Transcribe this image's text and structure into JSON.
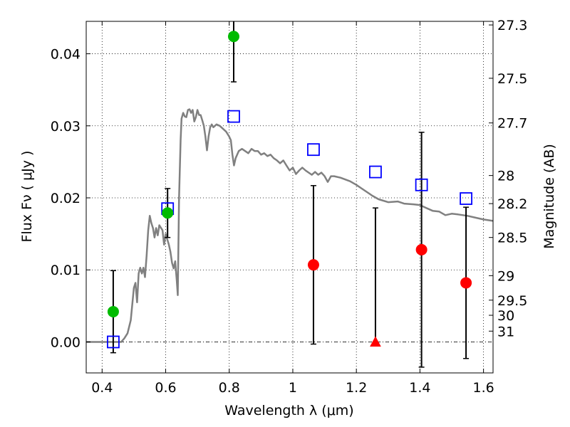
{
  "chart_data": {
    "type": "scatter",
    "xlabel": "Wavelength  λ (μm)",
    "ylabel": "Flux  Fν  ( μJy )",
    "ylabel_right": "Magnitude (AB)",
    "xlim": [
      0.35,
      1.63
    ],
    "ylim": [
      -0.0043,
      0.0445
    ],
    "grid": true,
    "x_ticks": [
      {
        "value": 0.4,
        "label": "0.4"
      },
      {
        "value": 0.6,
        "label": "0.6"
      },
      {
        "value": 0.8,
        "label": "0.8"
      },
      {
        "value": 1.0,
        "label": "1"
      },
      {
        "value": 1.2,
        "label": "1.2"
      },
      {
        "value": 1.4,
        "label": "1.4"
      },
      {
        "value": 1.6,
        "label": "1.6"
      }
    ],
    "y_ticks": [
      {
        "value": 0.0,
        "label": "0.00"
      },
      {
        "value": 0.01,
        "label": "0.01"
      },
      {
        "value": 0.02,
        "label": "0.02"
      },
      {
        "value": 0.03,
        "label": "0.03"
      },
      {
        "value": 0.04,
        "label": "0.04"
      }
    ],
    "right_ticks": [
      {
        "label": "27.3",
        "flux": 0.044
      },
      {
        "label": "27.5",
        "flux": 0.0366
      },
      {
        "label": "27.7",
        "flux": 0.0304
      },
      {
        "label": "28",
        "flux": 0.0231
      },
      {
        "label": "28.2",
        "flux": 0.0192
      },
      {
        "label": "28.5",
        "flux": 0.0145
      },
      {
        "label": "29",
        "flux": 0.0092
      },
      {
        "label": "29.5",
        "flux": 0.0058
      },
      {
        "label": "30",
        "flux": 0.0037
      },
      {
        "label": "31",
        "flux": 0.0015
      }
    ],
    "model_sed": {
      "color": "#808080",
      "points": [
        [
          0.35,
          0.0
        ],
        [
          0.46,
          0.0
        ],
        [
          0.47,
          0.0005
        ],
        [
          0.48,
          0.0012
        ],
        [
          0.49,
          0.003
        ],
        [
          0.5,
          0.0075
        ],
        [
          0.505,
          0.0082
        ],
        [
          0.51,
          0.0055
        ],
        [
          0.515,
          0.0095
        ],
        [
          0.52,
          0.0103
        ],
        [
          0.525,
          0.0095
        ],
        [
          0.53,
          0.0103
        ],
        [
          0.535,
          0.009
        ],
        [
          0.54,
          0.012
        ],
        [
          0.545,
          0.0155
        ],
        [
          0.55,
          0.0175
        ],
        [
          0.555,
          0.0165
        ],
        [
          0.56,
          0.0158
        ],
        [
          0.565,
          0.0145
        ],
        [
          0.57,
          0.0158
        ],
        [
          0.575,
          0.0148
        ],
        [
          0.58,
          0.0162
        ],
        [
          0.59,
          0.0155
        ],
        [
          0.595,
          0.0135
        ],
        [
          0.6,
          0.015
        ],
        [
          0.61,
          0.0135
        ],
        [
          0.615,
          0.0125
        ],
        [
          0.62,
          0.011
        ],
        [
          0.625,
          0.0102
        ],
        [
          0.63,
          0.0112
        ],
        [
          0.635,
          0.0085
        ],
        [
          0.638,
          0.0065
        ],
        [
          0.642,
          0.02
        ],
        [
          0.647,
          0.028
        ],
        [
          0.65,
          0.031
        ],
        [
          0.655,
          0.0318
        ],
        [
          0.66,
          0.0313
        ],
        [
          0.665,
          0.0312
        ],
        [
          0.67,
          0.0322
        ],
        [
          0.675,
          0.0323
        ],
        [
          0.68,
          0.0318
        ],
        [
          0.685,
          0.0322
        ],
        [
          0.69,
          0.0306
        ],
        [
          0.695,
          0.0312
        ],
        [
          0.7,
          0.0322
        ],
        [
          0.705,
          0.0315
        ],
        [
          0.71,
          0.0315
        ],
        [
          0.715,
          0.0308
        ],
        [
          0.72,
          0.03
        ],
        [
          0.725,
          0.0285
        ],
        [
          0.73,
          0.0266
        ],
        [
          0.735,
          0.0285
        ],
        [
          0.74,
          0.0298
        ],
        [
          0.745,
          0.0302
        ],
        [
          0.75,
          0.0298
        ],
        [
          0.76,
          0.0302
        ],
        [
          0.77,
          0.03
        ],
        [
          0.78,
          0.0296
        ],
        [
          0.79,
          0.0292
        ],
        [
          0.8,
          0.0285
        ],
        [
          0.805,
          0.028
        ],
        [
          0.81,
          0.026
        ],
        [
          0.815,
          0.0245
        ],
        [
          0.82,
          0.0255
        ],
        [
          0.83,
          0.0265
        ],
        [
          0.84,
          0.0268
        ],
        [
          0.85,
          0.0265
        ],
        [
          0.86,
          0.0262
        ],
        [
          0.87,
          0.0268
        ],
        [
          0.88,
          0.0265
        ],
        [
          0.89,
          0.0265
        ],
        [
          0.9,
          0.026
        ],
        [
          0.91,
          0.0262
        ],
        [
          0.92,
          0.0258
        ],
        [
          0.93,
          0.026
        ],
        [
          0.94,
          0.0255
        ],
        [
          0.95,
          0.0252
        ],
        [
          0.96,
          0.0248
        ],
        [
          0.97,
          0.0252
        ],
        [
          0.98,
          0.0245
        ],
        [
          0.99,
          0.0238
        ],
        [
          1.0,
          0.0242
        ],
        [
          1.01,
          0.0233
        ],
        [
          1.02,
          0.0238
        ],
        [
          1.03,
          0.0242
        ],
        [
          1.04,
          0.0238
        ],
        [
          1.05,
          0.0235
        ],
        [
          1.06,
          0.0232
        ],
        [
          1.07,
          0.0236
        ],
        [
          1.08,
          0.0232
        ],
        [
          1.09,
          0.0235
        ],
        [
          1.1,
          0.023
        ],
        [
          1.11,
          0.0222
        ],
        [
          1.12,
          0.023
        ],
        [
          1.13,
          0.023
        ],
        [
          1.15,
          0.0228
        ],
        [
          1.18,
          0.0223
        ],
        [
          1.2,
          0.0218
        ],
        [
          1.22,
          0.0212
        ],
        [
          1.24,
          0.0206
        ],
        [
          1.25,
          0.0203
        ],
        [
          1.27,
          0.0198
        ],
        [
          1.3,
          0.0194
        ],
        [
          1.33,
          0.0195
        ],
        [
          1.35,
          0.0192
        ],
        [
          1.38,
          0.0191
        ],
        [
          1.4,
          0.019
        ],
        [
          1.42,
          0.0186
        ],
        [
          1.44,
          0.0182
        ],
        [
          1.46,
          0.0181
        ],
        [
          1.48,
          0.0176
        ],
        [
          1.5,
          0.0178
        ],
        [
          1.52,
          0.0177
        ],
        [
          1.55,
          0.0175
        ],
        [
          1.58,
          0.0172
        ],
        [
          1.6,
          0.017
        ],
        [
          1.63,
          0.0168
        ]
      ]
    },
    "series": [
      {
        "color": "#0000ff",
        "marker": "open-square",
        "points": [
          {
            "x": 0.435,
            "y": 0.0
          },
          {
            "x": 0.606,
            "y": 0.0185
          },
          {
            "x": 0.814,
            "y": 0.0313
          },
          {
            "x": 1.065,
            "y": 0.0267
          },
          {
            "x": 1.26,
            "y": 0.0236
          },
          {
            "x": 1.405,
            "y": 0.0218
          },
          {
            "x": 1.545,
            "y": 0.0199
          }
        ]
      },
      {
        "color": "#00bb00",
        "marker": "filled-circle",
        "points": [
          {
            "x": 0.435,
            "y": 0.0042,
            "yerr": 0.0057
          },
          {
            "x": 0.606,
            "y": 0.0179,
            "yerr": 0.0034
          },
          {
            "x": 0.814,
            "y": 0.0424,
            "yerr": 0.0063
          }
        ]
      },
      {
        "color": "#ff0000",
        "marker": "filled-circle",
        "points": [
          {
            "x": 1.065,
            "y": 0.0107,
            "yerr": 0.011
          },
          {
            "x": 1.405,
            "y": 0.0128,
            "yerr": 0.0163
          },
          {
            "x": 1.545,
            "y": 0.0082,
            "yerr": 0.0105
          }
        ]
      },
      {
        "color": "#ff0000",
        "marker": "filled-triangle",
        "points": [
          {
            "x": 1.26,
            "y": 0.0,
            "yerr_low": 0.0,
            "yerr_high": 0.0186
          }
        ]
      }
    ]
  }
}
